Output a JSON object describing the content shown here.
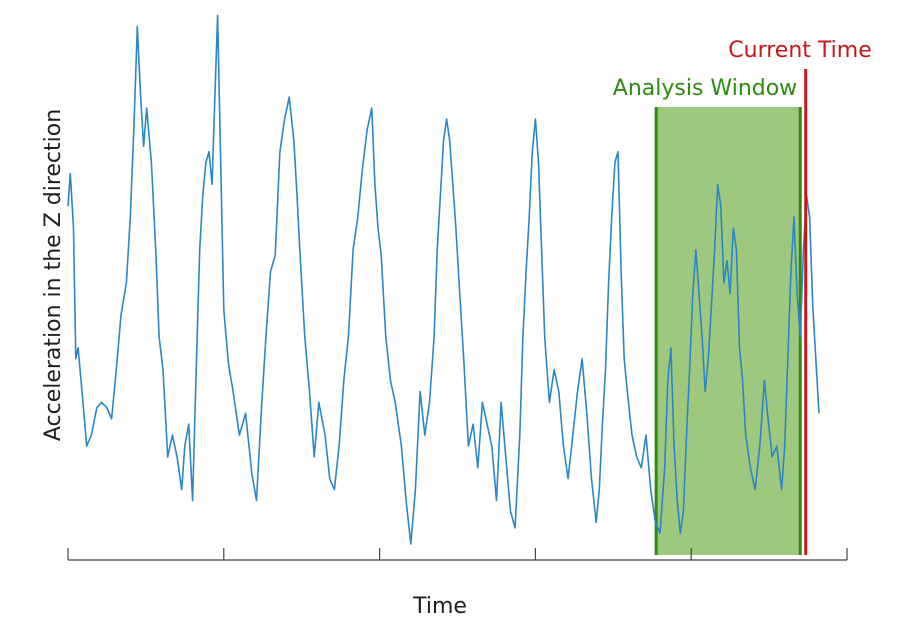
{
  "chart_data": {
    "type": "line",
    "title": "",
    "xlabel": "Time",
    "ylabel": "Acceleration in the Z direction",
    "grid": false,
    "legend": "none",
    "xlim": [
      0,
      1
    ],
    "ylim": [
      0,
      1
    ],
    "x_ticks_count": 6,
    "series": [
      {
        "color": "#2a86c6",
        "points": [
          [
            0.0,
            0.64
          ],
          [
            0.003,
            0.7
          ],
          [
            0.007,
            0.6
          ],
          [
            0.01,
            0.36
          ],
          [
            0.013,
            0.38
          ],
          [
            0.018,
            0.3
          ],
          [
            0.024,
            0.2
          ],
          [
            0.03,
            0.22
          ],
          [
            0.037,
            0.27
          ],
          [
            0.043,
            0.28
          ],
          [
            0.05,
            0.27
          ],
          [
            0.056,
            0.25
          ],
          [
            0.062,
            0.34
          ],
          [
            0.068,
            0.44
          ],
          [
            0.075,
            0.5
          ],
          [
            0.08,
            0.62
          ],
          [
            0.085,
            0.8
          ],
          [
            0.089,
            0.97
          ],
          [
            0.093,
            0.85
          ],
          [
            0.097,
            0.75
          ],
          [
            0.101,
            0.82
          ],
          [
            0.107,
            0.72
          ],
          [
            0.113,
            0.55
          ],
          [
            0.117,
            0.4
          ],
          [
            0.122,
            0.34
          ],
          [
            0.128,
            0.18
          ],
          [
            0.134,
            0.22
          ],
          [
            0.14,
            0.18
          ],
          [
            0.146,
            0.12
          ],
          [
            0.15,
            0.2
          ],
          [
            0.155,
            0.24
          ],
          [
            0.16,
            0.1
          ],
          [
            0.165,
            0.36
          ],
          [
            0.169,
            0.56
          ],
          [
            0.173,
            0.66
          ],
          [
            0.177,
            0.72
          ],
          [
            0.181,
            0.74
          ],
          [
            0.185,
            0.68
          ],
          [
            0.188,
            0.82
          ],
          [
            0.192,
            0.99
          ],
          [
            0.196,
            0.72
          ],
          [
            0.2,
            0.45
          ],
          [
            0.206,
            0.35
          ],
          [
            0.212,
            0.3
          ],
          [
            0.22,
            0.22
          ],
          [
            0.228,
            0.26
          ],
          [
            0.236,
            0.15
          ],
          [
            0.242,
            0.1
          ],
          [
            0.248,
            0.26
          ],
          [
            0.254,
            0.4
          ],
          [
            0.26,
            0.52
          ],
          [
            0.266,
            0.55
          ],
          [
            0.272,
            0.74
          ],
          [
            0.278,
            0.8
          ],
          [
            0.284,
            0.84
          ],
          [
            0.29,
            0.76
          ],
          [
            0.294,
            0.66
          ],
          [
            0.298,
            0.55
          ],
          [
            0.304,
            0.4
          ],
          [
            0.31,
            0.3
          ],
          [
            0.316,
            0.18
          ],
          [
            0.322,
            0.28
          ],
          [
            0.33,
            0.22
          ],
          [
            0.336,
            0.14
          ],
          [
            0.342,
            0.12
          ],
          [
            0.348,
            0.2
          ],
          [
            0.354,
            0.32
          ],
          [
            0.36,
            0.4
          ],
          [
            0.366,
            0.56
          ],
          [
            0.372,
            0.62
          ],
          [
            0.378,
            0.71
          ],
          [
            0.384,
            0.78
          ],
          [
            0.39,
            0.82
          ],
          [
            0.394,
            0.68
          ],
          [
            0.398,
            0.6
          ],
          [
            0.402,
            0.55
          ],
          [
            0.408,
            0.4
          ],
          [
            0.414,
            0.32
          ],
          [
            0.42,
            0.28
          ],
          [
            0.428,
            0.2
          ],
          [
            0.434,
            0.1
          ],
          [
            0.44,
            0.02
          ],
          [
            0.446,
            0.12
          ],
          [
            0.452,
            0.3
          ],
          [
            0.458,
            0.22
          ],
          [
            0.464,
            0.28
          ],
          [
            0.47,
            0.4
          ],
          [
            0.474,
            0.56
          ],
          [
            0.478,
            0.66
          ],
          [
            0.482,
            0.76
          ],
          [
            0.486,
            0.8
          ],
          [
            0.49,
            0.76
          ],
          [
            0.494,
            0.68
          ],
          [
            0.498,
            0.6
          ],
          [
            0.502,
            0.5
          ],
          [
            0.508,
            0.36
          ],
          [
            0.514,
            0.2
          ],
          [
            0.52,
            0.24
          ],
          [
            0.526,
            0.16
          ],
          [
            0.532,
            0.28
          ],
          [
            0.538,
            0.24
          ],
          [
            0.544,
            0.2
          ],
          [
            0.55,
            0.1
          ],
          [
            0.556,
            0.28
          ],
          [
            0.562,
            0.18
          ],
          [
            0.568,
            0.08
          ],
          [
            0.574,
            0.05
          ],
          [
            0.58,
            0.22
          ],
          [
            0.584,
            0.4
          ],
          [
            0.588,
            0.52
          ],
          [
            0.592,
            0.62
          ],
          [
            0.596,
            0.74
          ],
          [
            0.6,
            0.8
          ],
          [
            0.604,
            0.72
          ],
          [
            0.608,
            0.56
          ],
          [
            0.612,
            0.4
          ],
          [
            0.618,
            0.28
          ],
          [
            0.624,
            0.34
          ],
          [
            0.63,
            0.3
          ],
          [
            0.636,
            0.2
          ],
          [
            0.642,
            0.14
          ],
          [
            0.648,
            0.22
          ],
          [
            0.654,
            0.3
          ],
          [
            0.66,
            0.36
          ],
          [
            0.666,
            0.26
          ],
          [
            0.672,
            0.14
          ],
          [
            0.678,
            0.06
          ],
          [
            0.682,
            0.12
          ],
          [
            0.686,
            0.24
          ],
          [
            0.69,
            0.34
          ],
          [
            0.694,
            0.5
          ],
          [
            0.698,
            0.62
          ],
          [
            0.702,
            0.72
          ],
          [
            0.706,
            0.74
          ],
          [
            0.71,
            0.52
          ],
          [
            0.714,
            0.36
          ],
          [
            0.718,
            0.3
          ],
          [
            0.724,
            0.22
          ],
          [
            0.73,
            0.18
          ],
          [
            0.736,
            0.16
          ],
          [
            0.742,
            0.22
          ],
          [
            0.748,
            0.12
          ],
          [
            0.754,
            0.06
          ],
          [
            0.76,
            0.04
          ],
          [
            0.766,
            0.16
          ],
          [
            0.77,
            0.32
          ],
          [
            0.774,
            0.38
          ],
          [
            0.778,
            0.2
          ],
          [
            0.782,
            0.1
          ],
          [
            0.786,
            0.04
          ],
          [
            0.79,
            0.08
          ],
          [
            0.794,
            0.22
          ],
          [
            0.798,
            0.34
          ],
          [
            0.802,
            0.48
          ],
          [
            0.806,
            0.56
          ],
          [
            0.81,
            0.48
          ],
          [
            0.814,
            0.4
          ],
          [
            0.818,
            0.3
          ],
          [
            0.822,
            0.36
          ],
          [
            0.826,
            0.46
          ],
          [
            0.83,
            0.56
          ],
          [
            0.834,
            0.68
          ],
          [
            0.838,
            0.64
          ],
          [
            0.842,
            0.5
          ],
          [
            0.846,
            0.54
          ],
          [
            0.85,
            0.48
          ],
          [
            0.854,
            0.6
          ],
          [
            0.858,
            0.56
          ],
          [
            0.862,
            0.38
          ],
          [
            0.866,
            0.32
          ],
          [
            0.87,
            0.22
          ],
          [
            0.876,
            0.16
          ],
          [
            0.882,
            0.12
          ],
          [
            0.888,
            0.2
          ],
          [
            0.894,
            0.32
          ],
          [
            0.898,
            0.26
          ],
          [
            0.904,
            0.18
          ],
          [
            0.91,
            0.2
          ],
          [
            0.916,
            0.12
          ],
          [
            0.92,
            0.2
          ],
          [
            0.924,
            0.36
          ],
          [
            0.928,
            0.52
          ],
          [
            0.932,
            0.62
          ],
          [
            0.936,
            0.48
          ],
          [
            0.94,
            0.4
          ],
          [
            0.944,
            0.56
          ],
          [
            0.948,
            0.66
          ],
          [
            0.952,
            0.62
          ],
          [
            0.956,
            0.46
          ],
          [
            0.96,
            0.36
          ],
          [
            0.964,
            0.26
          ]
        ]
      }
    ],
    "annotations": [
      {
        "label": "Analysis Window",
        "x_start": 0.755,
        "x_end": 0.94,
        "fill": "#9fc87f",
        "edge_color": "#2e8b12",
        "text_color": "#2e8b12"
      },
      {
        "label": "Current Time",
        "x": 0.947,
        "color": "#c8161d",
        "text_color": "#c8161d"
      }
    ]
  }
}
